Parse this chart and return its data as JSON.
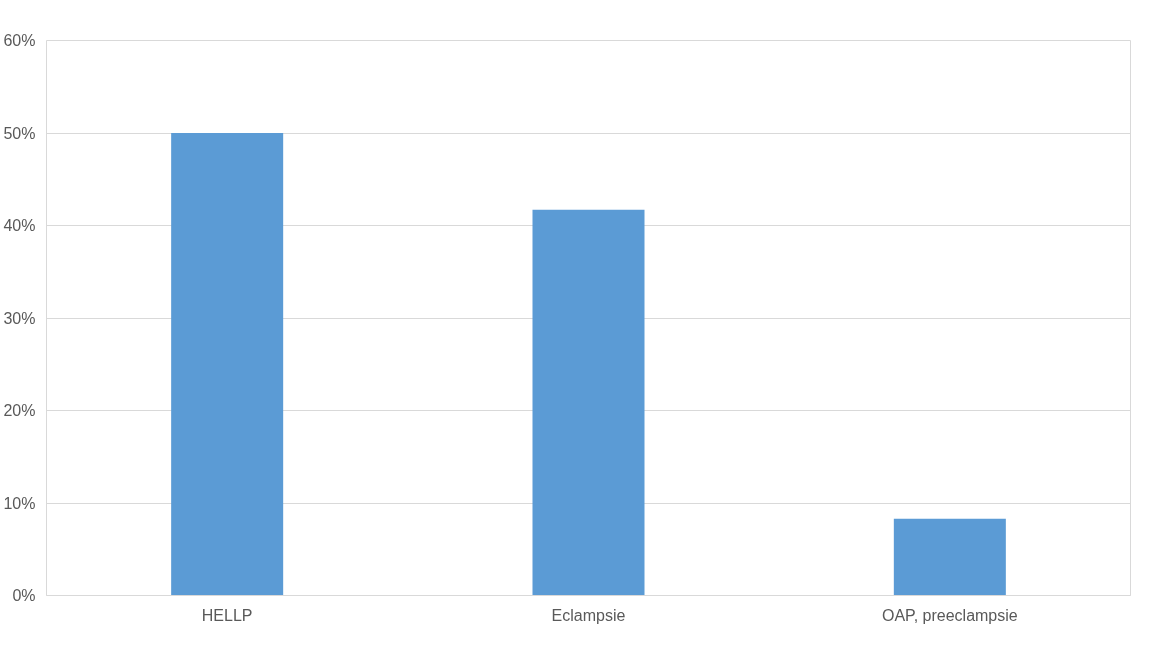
{
  "chart_data": {
    "type": "bar",
    "categories": [
      "HELLP",
      "Eclampsie",
      "OAP, preeclampsie"
    ],
    "values": [
      50,
      41.7,
      8.3
    ],
    "color": "#5b9bd5",
    "ylim": [
      0,
      60
    ],
    "yticks": [
      {
        "value": 0,
        "label": "0%"
      },
      {
        "value": 10,
        "label": "10%"
      },
      {
        "value": 20,
        "label": "20%"
      },
      {
        "value": 30,
        "label": "30%"
      },
      {
        "value": 40,
        "label": "40%"
      },
      {
        "value": 50,
        "label": "50%"
      },
      {
        "value": 60,
        "label": "60%"
      }
    ],
    "grid": "y"
  }
}
